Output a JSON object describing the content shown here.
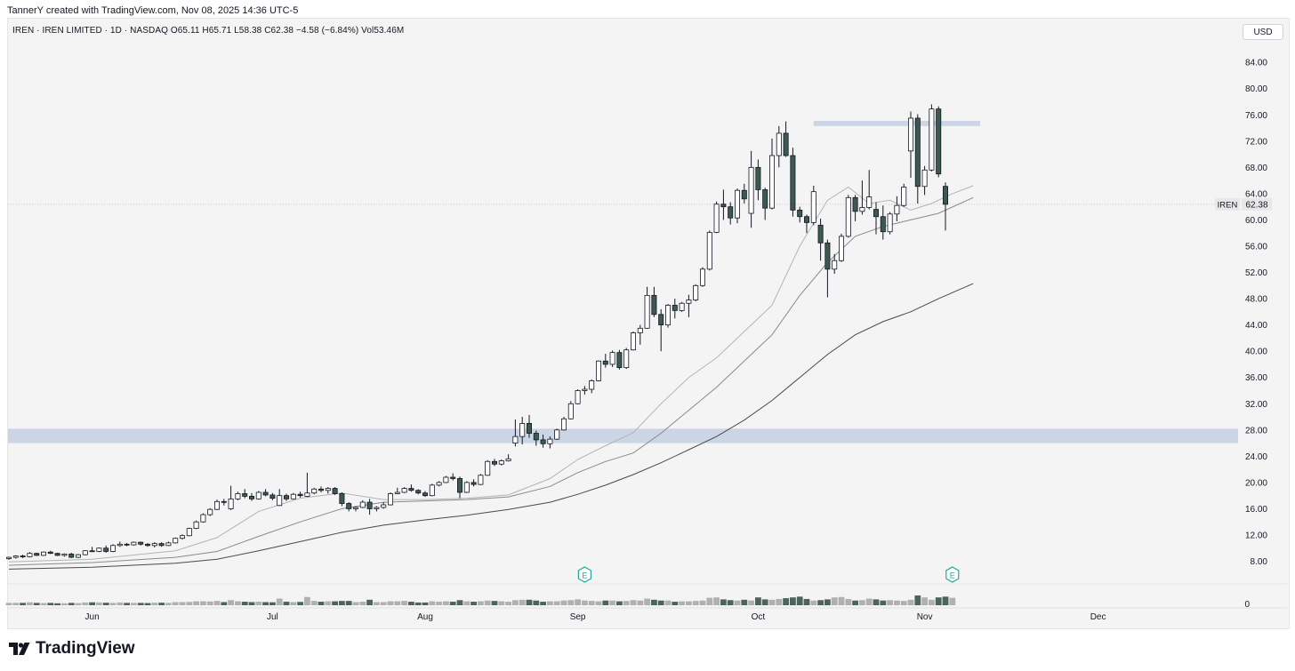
{
  "header": {
    "attribution": "TannerY created with TradingView.com, Nov 08, 2025 14:36 UTC-5"
  },
  "legend": {
    "text": "IREN · IREN LIMITED · 1D · NASDAQ  O65.11  H65.71  L58.38  C62.38  −4.58 (−6.84%)  Vol53.46M"
  },
  "currency_button": "USD",
  "brand": "TradingView",
  "chart_data": {
    "type": "candlestick",
    "symbol": "IREN",
    "ticker_label": "IREN",
    "last_price": "62.38",
    "ohlc": {
      "open": 65.11,
      "high": 65.71,
      "low": 58.38,
      "close": 62.38,
      "change": -4.58,
      "change_pct": -6.84,
      "volume": "53.46M"
    },
    "ylim": [
      5.5,
      87
    ],
    "y_ticks": [
      "84.00",
      "80.00",
      "76.00",
      "72.00",
      "68.00",
      "64.00",
      "60.00",
      "56.00",
      "52.00",
      "48.00",
      "44.00",
      "40.00",
      "36.00",
      "32.00",
      "28.00",
      "24.00",
      "20.00",
      "16.00",
      "12.00",
      "8.00"
    ],
    "volume_tick": "0",
    "months": [
      {
        "label": "Jun",
        "bar": 12
      },
      {
        "label": "Jul",
        "bar": 38
      },
      {
        "label": "Aug",
        "bar": 60
      },
      {
        "label": "Sep",
        "bar": 82
      },
      {
        "label": "Oct",
        "bar": 108
      },
      {
        "label": "Nov",
        "bar": 132
      },
      {
        "label": "Dec",
        "bar": 157
      }
    ],
    "earnings_markers": [
      {
        "label": "E",
        "bar": 83
      },
      {
        "label": "E",
        "bar": 136
      }
    ],
    "zones": [
      {
        "from_bar": -2,
        "to_bar": 183,
        "low": 26.0,
        "high": 28.2
      },
      {
        "from_bar": 116,
        "to_bar": 140,
        "low": 74.3,
        "high": 75.1
      }
    ],
    "ma_fast": [
      [
        0,
        7.9
      ],
      [
        12,
        8.3
      ],
      [
        24,
        9.6
      ],
      [
        30,
        11.6
      ],
      [
        36,
        15.6
      ],
      [
        42,
        17.6
      ],
      [
        48,
        18.4
      ],
      [
        54,
        17.4
      ],
      [
        60,
        17.4
      ],
      [
        66,
        17.6
      ],
      [
        72,
        18.1
      ],
      [
        78,
        20.6
      ],
      [
        82,
        23.5
      ],
      [
        86,
        25.6
      ],
      [
        90,
        27.6
      ],
      [
        94,
        32
      ],
      [
        98,
        36
      ],
      [
        102,
        39
      ],
      [
        106,
        43
      ],
      [
        110,
        47
      ],
      [
        114,
        56
      ],
      [
        118,
        63
      ],
      [
        121,
        65
      ],
      [
        124,
        62.5
      ],
      [
        127,
        63
      ],
      [
        130,
        61.5
      ],
      [
        133,
        62.5
      ],
      [
        136,
        64
      ],
      [
        139,
        65.2
      ]
    ],
    "ma_mid": [
      [
        0,
        7.4
      ],
      [
        12,
        7.8
      ],
      [
        24,
        8.6
      ],
      [
        30,
        9.5
      ],
      [
        36,
        11.8
      ],
      [
        42,
        14
      ],
      [
        48,
        16
      ],
      [
        54,
        17
      ],
      [
        60,
        17.2
      ],
      [
        66,
        17.4
      ],
      [
        72,
        17.8
      ],
      [
        78,
        19.4
      ],
      [
        82,
        21.5
      ],
      [
        86,
        23.2
      ],
      [
        90,
        24.5
      ],
      [
        94,
        27.5
      ],
      [
        98,
        31
      ],
      [
        102,
        34.5
      ],
      [
        106,
        38.5
      ],
      [
        110,
        42.5
      ],
      [
        114,
        48.5
      ],
      [
        118,
        53.5
      ],
      [
        122,
        57.5
      ],
      [
        126,
        59
      ],
      [
        130,
        60
      ],
      [
        134,
        61
      ],
      [
        139,
        63.4
      ]
    ],
    "ma_slow": [
      [
        0,
        6.8
      ],
      [
        12,
        7.1
      ],
      [
        24,
        7.7
      ],
      [
        30,
        8.3
      ],
      [
        36,
        9.6
      ],
      [
        42,
        11
      ],
      [
        48,
        12.4
      ],
      [
        54,
        13.5
      ],
      [
        60,
        14.3
      ],
      [
        66,
        15
      ],
      [
        72,
        15.9
      ],
      [
        78,
        17
      ],
      [
        82,
        18.2
      ],
      [
        86,
        19.6
      ],
      [
        90,
        21.2
      ],
      [
        94,
        23
      ],
      [
        98,
        25
      ],
      [
        102,
        27
      ],
      [
        106,
        29.5
      ],
      [
        110,
        32.5
      ],
      [
        114,
        36
      ],
      [
        118,
        39.5
      ],
      [
        122,
        42.5
      ],
      [
        126,
        44.5
      ],
      [
        130,
        46
      ],
      [
        134,
        48
      ],
      [
        139,
        50.3
      ]
    ],
    "candles": [
      [
        8.4,
        8.7,
        8.2,
        8.6
      ],
      [
        8.6,
        8.9,
        8.4,
        8.8
      ],
      [
        8.8,
        9.0,
        8.5,
        8.7
      ],
      [
        8.7,
        9.4,
        8.6,
        9.2
      ],
      [
        9.2,
        9.3,
        8.8,
        8.9
      ],
      [
        8.9,
        9.5,
        8.8,
        9.4
      ],
      [
        9.4,
        9.6,
        9.1,
        9.2
      ],
      [
        9.2,
        9.3,
        8.8,
        8.9
      ],
      [
        8.9,
        9.2,
        8.7,
        9.1
      ],
      [
        9.1,
        9.3,
        8.5,
        8.6
      ],
      [
        8.6,
        9.1,
        8.5,
        9.0
      ],
      [
        9.0,
        9.7,
        8.9,
        9.6
      ],
      [
        9.6,
        10.2,
        9.4,
        9.5
      ],
      [
        9.5,
        10.1,
        9.4,
        10.0
      ],
      [
        10.0,
        10.4,
        9.3,
        9.5
      ],
      [
        9.5,
        10.6,
        9.4,
        10.4
      ],
      [
        10.4,
        11.0,
        10.2,
        10.6
      ],
      [
        10.6,
        10.8,
        10.3,
        10.5
      ],
      [
        10.5,
        11.0,
        10.4,
        10.9
      ],
      [
        10.9,
        11.0,
        10.4,
        10.6
      ],
      [
        10.6,
        10.8,
        10.2,
        10.4
      ],
      [
        10.4,
        10.9,
        10.1,
        10.7
      ],
      [
        10.7,
        10.9,
        10.2,
        10.4
      ],
      [
        10.4,
        11.0,
        10.3,
        10.8
      ],
      [
        10.8,
        11.6,
        10.7,
        11.5
      ],
      [
        11.5,
        12.1,
        11.3,
        11.9
      ],
      [
        11.9,
        13.1,
        11.8,
        13.0
      ],
      [
        13.0,
        14.2,
        12.9,
        14.0
      ],
      [
        14.0,
        15.3,
        13.9,
        15.1
      ],
      [
        15.1,
        16.1,
        14.9,
        15.9
      ],
      [
        15.9,
        17.4,
        15.8,
        17.1
      ],
      [
        17.1,
        17.5,
        16.5,
        17.0
      ],
      [
        16.0,
        19.5,
        15.8,
        17.5
      ],
      [
        17.5,
        18.6,
        17.3,
        18.3
      ],
      [
        18.3,
        19.0,
        17.6,
        17.9
      ],
      [
        17.9,
        18.4,
        17.2,
        17.5
      ],
      [
        17.5,
        18.7,
        17.4,
        18.5
      ],
      [
        18.5,
        19.0,
        17.9,
        18.1
      ],
      [
        18.1,
        18.4,
        17.3,
        17.6
      ],
      [
        16.5,
        19.0,
        16.4,
        18.0
      ],
      [
        18.0,
        18.3,
        17.2,
        17.5
      ],
      [
        17.5,
        18.4,
        17.4,
        18.2
      ],
      [
        18.2,
        18.6,
        17.7,
        18.0
      ],
      [
        17.9,
        21.5,
        17.8,
        18.4
      ],
      [
        18.4,
        19.2,
        18.2,
        19.0
      ],
      [
        19.0,
        19.4,
        18.5,
        18.8
      ],
      [
        18.8,
        19.3,
        18.3,
        19.1
      ],
      [
        19.1,
        19.3,
        18.1,
        18.3
      ],
      [
        18.3,
        18.5,
        16.4,
        16.8
      ],
      [
        16.8,
        17.0,
        15.6,
        16.0
      ],
      [
        16.0,
        16.4,
        15.6,
        16.2
      ],
      [
        16.2,
        17.3,
        16.1,
        17.0
      ],
      [
        17.0,
        17.5,
        15.1,
        16.0
      ],
      [
        16.0,
        16.4,
        15.6,
        16.2
      ],
      [
        16.2,
        17.0,
        16.0,
        16.6
      ],
      [
        16.6,
        18.5,
        16.5,
        18.3
      ],
      [
        18.3,
        19.2,
        18.2,
        18.5
      ],
      [
        18.5,
        19.3,
        18.4,
        19.1
      ],
      [
        19.1,
        19.7,
        18.6,
        18.8
      ],
      [
        18.8,
        19.0,
        18.2,
        18.4
      ],
      [
        18.4,
        18.7,
        17.8,
        18.0
      ],
      [
        18.0,
        19.8,
        17.9,
        19.6
      ],
      [
        19.6,
        20.2,
        19.4,
        20.0
      ],
      [
        20.0,
        21.0,
        19.9,
        20.8
      ],
      [
        20.8,
        21.4,
        20.3,
        20.6
      ],
      [
        20.6,
        20.9,
        17.6,
        18.5
      ],
      [
        18.5,
        20.2,
        18.4,
        20.0
      ],
      [
        20.0,
        20.5,
        19.4,
        19.7
      ],
      [
        19.7,
        21.3,
        19.6,
        21.1
      ],
      [
        21.1,
        23.4,
        21.0,
        23.2
      ],
      [
        23.2,
        23.6,
        22.5,
        22.8
      ],
      [
        22.8,
        23.5,
        22.6,
        23.3
      ],
      [
        23.3,
        24.3,
        23.2,
        23.6
      ],
      [
        26.0,
        29.6,
        25.5,
        27.0
      ],
      [
        27.0,
        30.0,
        25.8,
        29.0
      ],
      [
        29.0,
        30.3,
        26.8,
        27.5
      ],
      [
        27.5,
        27.9,
        25.6,
        26.5
      ],
      [
        26.5,
        27.3,
        25.3,
        25.9
      ],
      [
        25.9,
        27.0,
        25.2,
        26.6
      ],
      [
        26.6,
        28.2,
        26.5,
        28.0
      ],
      [
        28.0,
        30.0,
        27.9,
        29.7
      ],
      [
        29.7,
        32.4,
        29.6,
        32.0
      ],
      [
        32.0,
        34.2,
        31.9,
        34.0
      ],
      [
        34.0,
        34.7,
        33.4,
        34.2
      ],
      [
        34.2,
        35.7,
        33.6,
        35.5
      ],
      [
        35.5,
        38.6,
        35.4,
        38.5
      ],
      [
        38.5,
        39.6,
        37.5,
        38.0
      ],
      [
        38.0,
        40.1,
        37.6,
        39.8
      ],
      [
        39.8,
        40.2,
        37.2,
        37.5
      ],
      [
        37.5,
        40.5,
        37.3,
        40.2
      ],
      [
        40.2,
        43.0,
        40.1,
        42.8
      ],
      [
        42.8,
        44.0,
        41.0,
        43.5
      ],
      [
        43.5,
        49.8,
        43.4,
        48.5
      ],
      [
        48.5,
        49.8,
        45.2,
        45.6
      ],
      [
        45.6,
        46.4,
        40.0,
        44.0
      ],
      [
        44.0,
        47.2,
        43.6,
        47.0
      ],
      [
        47.0,
        48.0,
        45.0,
        46.2
      ],
      [
        46.2,
        47.5,
        46.0,
        47.3
      ],
      [
        47.3,
        48.6,
        45.2,
        47.8
      ],
      [
        47.8,
        50.2,
        47.6,
        50.0
      ],
      [
        50.0,
        52.8,
        49.8,
        52.5
      ],
      [
        52.5,
        58.4,
        52.3,
        58.1
      ],
      [
        58.1,
        62.8,
        58.0,
        62.4
      ],
      [
        62.4,
        64.6,
        60.0,
        62.0
      ],
      [
        62.0,
        62.7,
        59.3,
        60.3
      ],
      [
        60.3,
        64.8,
        59.5,
        64.5
      ],
      [
        64.5,
        65.5,
        62.5,
        63.2
      ],
      [
        61.0,
        70.5,
        58.8,
        68.0
      ],
      [
        68.0,
        69.2,
        63.0,
        64.6
      ],
      [
        64.6,
        64.9,
        60.0,
        61.8
      ],
      [
        61.8,
        72.4,
        61.6,
        69.8
      ],
      [
        69.8,
        74.3,
        68.0,
        73.2
      ],
      [
        73.2,
        75.0,
        69.6,
        69.8
      ],
      [
        69.8,
        71.0,
        60.5,
        61.5
      ],
      [
        61.5,
        62.0,
        59.6,
        60.5
      ],
      [
        60.5,
        60.8,
        58.0,
        59.6
      ],
      [
        59.6,
        65.2,
        59.2,
        64.3
      ],
      [
        59.2,
        60.2,
        53.8,
        56.5
      ],
      [
        56.5,
        57.0,
        48.2,
        52.5
      ],
      [
        52.5,
        54.8,
        51.8,
        53.8
      ],
      [
        53.8,
        57.9,
        53.6,
        57.5
      ],
      [
        57.5,
        63.8,
        57.3,
        63.4
      ],
      [
        63.4,
        63.8,
        59.8,
        61.3
      ],
      [
        61.3,
        66.0,
        60.8,
        61.9
      ],
      [
        61.9,
        67.6,
        61.6,
        63.5
      ],
      [
        61.6,
        62.7,
        57.8,
        60.5
      ],
      [
        60.5,
        62.2,
        57.0,
        58.2
      ],
      [
        58.2,
        61.2,
        57.8,
        60.9
      ],
      [
        60.9,
        63.6,
        59.8,
        62.2
      ],
      [
        62.2,
        65.5,
        62.0,
        65.0
      ],
      [
        70.5,
        76.5,
        66.4,
        75.5
      ],
      [
        75.5,
        76.1,
        62.5,
        65.1
      ],
      [
        65.1,
        68.2,
        63.8,
        67.6
      ],
      [
        67.6,
        77.6,
        67.4,
        76.9
      ],
      [
        76.9,
        77.3,
        66.5,
        67.0
      ],
      [
        65.11,
        65.71,
        58.38,
        62.38
      ]
    ],
    "volume": [
      12,
      12,
      12,
      15,
      12,
      11,
      12,
      10,
      10,
      12,
      11,
      14,
      15,
      14,
      13,
      12,
      14,
      12,
      12,
      12,
      11,
      13,
      13,
      12,
      16,
      16,
      17,
      20,
      20,
      19,
      22,
      16,
      26,
      20,
      18,
      16,
      18,
      16,
      15,
      34,
      18,
      16,
      17,
      42,
      22,
      18,
      20,
      20,
      22,
      22,
      16,
      18,
      28,
      16,
      16,
      20,
      20,
      22,
      18,
      14,
      14,
      20,
      18,
      20,
      18,
      26,
      20,
      18,
      20,
      24,
      22,
      20,
      18,
      26,
      28,
      28,
      24,
      18,
      20,
      20,
      24,
      26,
      30,
      24,
      22,
      20,
      24,
      24,
      20,
      22,
      26,
      24,
      34,
      28,
      24,
      24,
      18,
      20,
      20,
      22,
      24,
      38,
      40,
      30,
      26,
      24,
      28,
      24,
      40,
      30,
      28,
      32,
      36,
      40,
      44,
      32,
      24,
      26,
      30,
      40,
      42,
      32,
      24,
      26,
      34,
      30,
      24,
      26,
      24,
      22,
      28,
      50,
      40,
      28,
      40,
      44,
      38
    ]
  }
}
